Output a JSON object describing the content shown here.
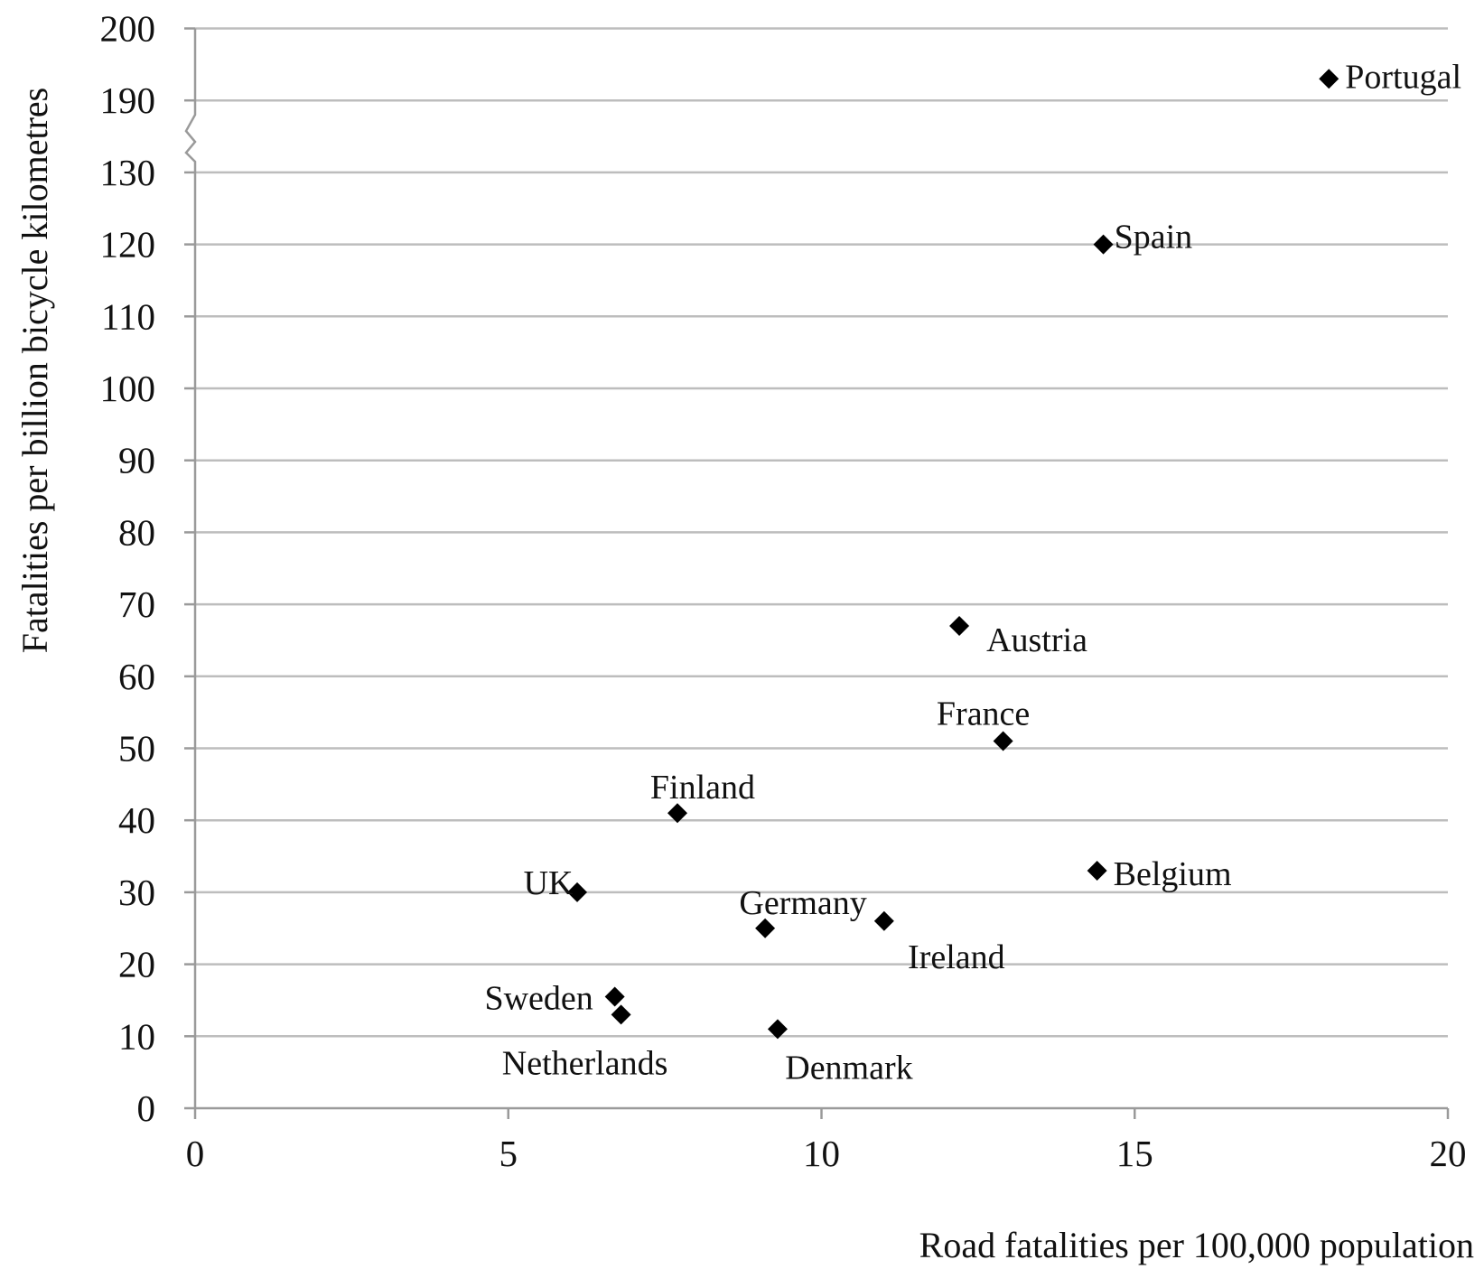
{
  "chart_data": {
    "type": "scatter",
    "xlabel": "Road fatalities per 100,000 population",
    "ylabel": "Fatalities per billion bicycle kilometres",
    "xlim": [
      0,
      20
    ],
    "x_ticks": [
      "0",
      "5",
      "10",
      "15",
      "20"
    ],
    "y_ticks": [
      "0",
      "10",
      "20",
      "30",
      "40",
      "50",
      "60",
      "70",
      "80",
      "90",
      "100",
      "110",
      "120",
      "130",
      "190",
      "200"
    ],
    "y_axis_break": "between 130 and 190",
    "grid": "horizontal",
    "marker": "diamond",
    "marker_color": "#000000",
    "points": [
      {
        "label": "Portugal",
        "x": 18.1,
        "y": 193
      },
      {
        "label": "Spain",
        "x": 14.5,
        "y": 120
      },
      {
        "label": "Austria",
        "x": 12.2,
        "y": 67
      },
      {
        "label": "France",
        "x": 12.9,
        "y": 51
      },
      {
        "label": "Finland",
        "x": 7.7,
        "y": 41
      },
      {
        "label": "Belgium",
        "x": 14.4,
        "y": 33
      },
      {
        "label": "UK",
        "x": 6.1,
        "y": 30
      },
      {
        "label": "Germany",
        "x": 9.1,
        "y": 25
      },
      {
        "label": "Ireland",
        "x": 11.0,
        "y": 26
      },
      {
        "label": "Sweden",
        "x": 6.7,
        "y": 15.5
      },
      {
        "label": "Netherlands",
        "x": 6.8,
        "y": 13
      },
      {
        "label": "Denmark",
        "x": 9.3,
        "y": 11
      }
    ]
  }
}
